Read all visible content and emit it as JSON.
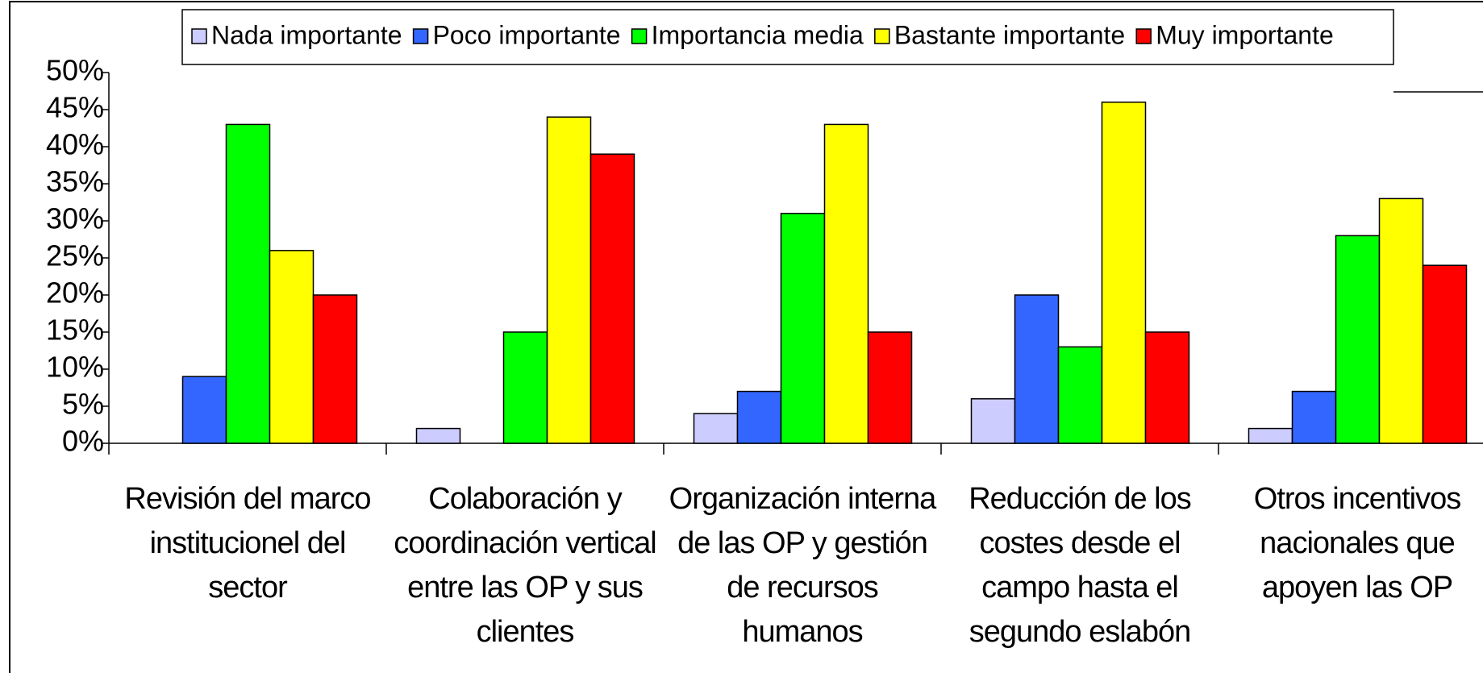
{
  "chart_data": {
    "type": "bar",
    "categories": [
      "Revisión del marco institucionel del sector",
      "Colaboración y coordinación vertical entre las OP y sus clientes",
      "Organización interna de las OP y gestión de recursos humanos",
      "Reducción de los costes desde el campo hasta el segundo eslabón",
      "Otros incentivos nacionales que apoyen las OP"
    ],
    "series": [
      {
        "name": "Nada importante",
        "color": "#ccccff",
        "values": [
          0,
          2,
          4,
          6,
          2
        ]
      },
      {
        "name": "Poco importante",
        "color": "#3366ff",
        "values": [
          9,
          0,
          7,
          20,
          7
        ]
      },
      {
        "name": "Importancia media",
        "color": "#00ff00",
        "values": [
          43,
          15,
          31,
          13,
          28
        ]
      },
      {
        "name": "Bastante importante",
        "color": "#ffff00",
        "values": [
          26,
          44,
          43,
          46,
          33
        ]
      },
      {
        "name": "Muy importante",
        "color": "#ff0000",
        "values": [
          20,
          39,
          15,
          15,
          24
        ]
      }
    ],
    "ylim": [
      0,
      50
    ],
    "yticks": [
      {
        "value": 0,
        "label": "0%"
      },
      {
        "value": 5,
        "label": "5%"
      },
      {
        "value": 10,
        "label": "10%"
      },
      {
        "value": 15,
        "label": "15%"
      },
      {
        "value": 20,
        "label": "20%"
      },
      {
        "value": 25,
        "label": "25%"
      },
      {
        "value": 30,
        "label": "30%"
      },
      {
        "value": 35,
        "label": "35%"
      },
      {
        "value": 40,
        "label": "40%"
      },
      {
        "value": 45,
        "label": "45%"
      },
      {
        "value": 50,
        "label": "50%"
      }
    ],
    "legend": "top"
  }
}
